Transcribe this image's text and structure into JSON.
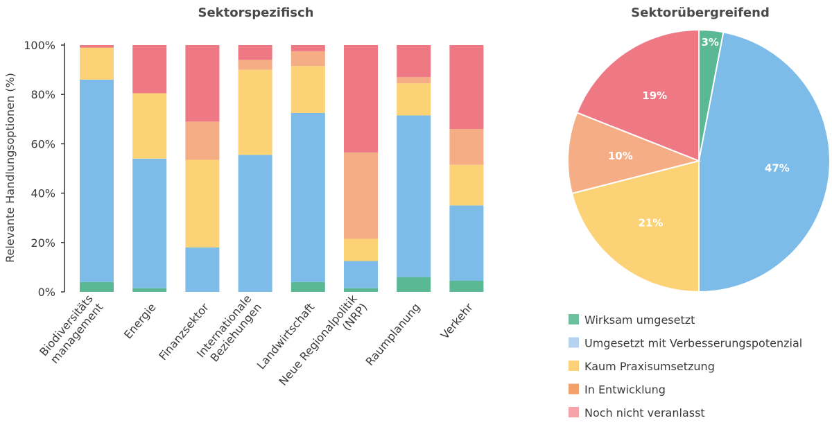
{
  "chart_data": [
    {
      "type": "bar",
      "stacked": true,
      "title": "Sektorspezifisch",
      "ylabel": "Relevante Handlungsoptionen (%)",
      "ylim": [
        0,
        100
      ],
      "yticks": [
        "0%",
        "20%",
        "40%",
        "60%",
        "80%",
        "100%"
      ],
      "categories": [
        [
          "Biodiversitäts",
          "management"
        ],
        [
          "Energie"
        ],
        [
          "Finanzsektor"
        ],
        [
          "Internationale",
          "Beziehungen"
        ],
        [
          "Landwirtschaft"
        ],
        [
          "Neue Regionalpolitik",
          "(NRP)"
        ],
        [
          "Raumplanung"
        ],
        [
          "Verkehr"
        ]
      ],
      "series": [
        {
          "name": "Wirksam umgesetzt",
          "values": [
            4,
            1.5,
            0,
            0,
            4,
            1.5,
            6,
            4.5
          ]
        },
        {
          "name": "Umgesetzt mit Verbesserungspotenzial",
          "values": [
            82,
            52.5,
            18,
            55.5,
            68.5,
            11,
            65.5,
            30.5
          ]
        },
        {
          "name": "Kaum Praxisumsetzung",
          "values": [
            13,
            26.5,
            35.5,
            34.5,
            19,
            9,
            13,
            16.5
          ]
        },
        {
          "name": "In Entwicklung",
          "values": [
            0,
            0,
            15.5,
            4,
            6,
            35,
            2.5,
            14.5
          ]
        },
        {
          "name": "Noch nicht veranlasst",
          "values": [
            1,
            19.5,
            31,
            6,
            2.5,
            43.5,
            13,
            34
          ]
        }
      ]
    },
    {
      "type": "pie",
      "title": "Sektorübergreifend",
      "slices": [
        {
          "name": "Wirksam umgesetzt",
          "value": 3,
          "label": "3%"
        },
        {
          "name": "Umgesetzt mit Verbesserungspotenzial",
          "value": 47,
          "label": "47%"
        },
        {
          "name": "Kaum Praxisumsetzung",
          "value": 21,
          "label": "21%"
        },
        {
          "name": "In Entwicklung",
          "value": 10,
          "label": "10%"
        },
        {
          "name": "Noch nicht veranlasst",
          "value": 19,
          "label": "19%"
        }
      ]
    }
  ],
  "legend": {
    "placement": "bottom-right",
    "items": [
      {
        "label": "Wirksam umgesetzt",
        "color": "#6dbf9d"
      },
      {
        "label": "Umgesetzt mit Verbesserungspotenzial",
        "color": "#b5d3ef"
      },
      {
        "label": "Kaum Praxisumsetzung",
        "color": "#fcd276"
      },
      {
        "label": "In Entwicklung",
        "color": "#f4a06a"
      },
      {
        "label": "Noch nicht veranlasst",
        "color": "#f5a3a8"
      }
    ]
  },
  "colors": {
    "bar": [
      "#5bb894",
      "#7dbce8",
      "#fcd276",
      "#f5ad86",
      "#ef7885"
    ],
    "pie": [
      "#5bb894",
      "#7dbce8",
      "#fcd276",
      "#f5ad86",
      "#ef7885"
    ]
  }
}
